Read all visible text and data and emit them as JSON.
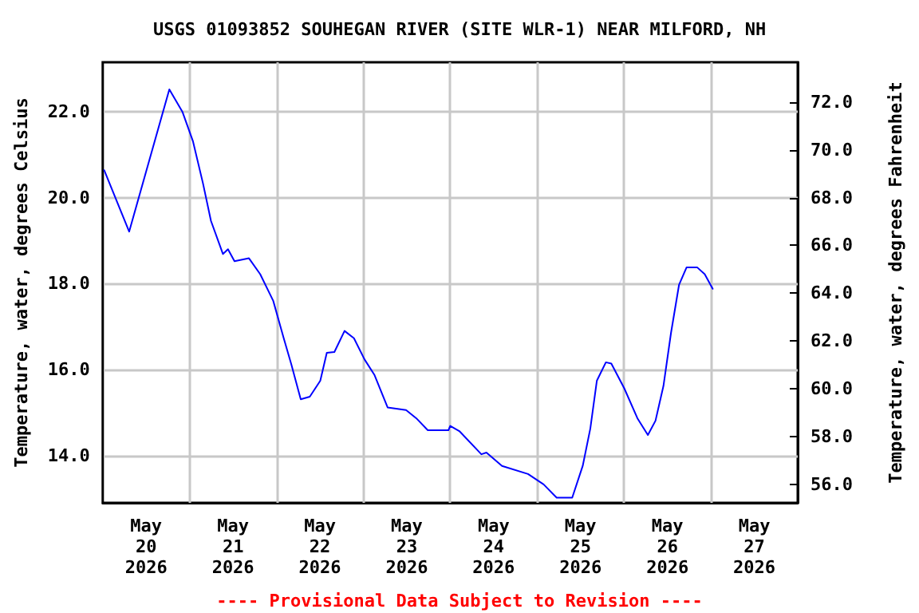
{
  "chart_data": {
    "type": "line",
    "title": "USGS 01093852 SOUHEGAN RIVER (SITE WLR-1) NEAR MILFORD, NH",
    "ylabel": "Temperature, water, degrees Celsius",
    "y2label": "Temperature, water, degrees Fahrenheit",
    "annotations": [
      "---- Provisional Data Subject to Revision ----"
    ],
    "x": [
      "2026-05-20T00:24",
      "2026-05-20T07:18",
      "2026-05-20T18:24",
      "2026-05-20T22:00",
      "2026-05-21T00:54",
      "2026-05-21T03:42",
      "2026-05-21T05:54",
      "2026-05-21T09:12",
      "2026-05-21T10:36",
      "2026-05-21T12:24",
      "2026-05-21T16:24",
      "2026-05-21T19:30",
      "2026-05-21T23:06",
      "2026-05-22T02:00",
      "2026-05-22T04:06",
      "2026-05-22T06:42",
      "2026-05-22T09:12",
      "2026-05-22T12:06",
      "2026-05-22T13:54",
      "2026-05-22T16:00",
      "2026-05-22T18:48",
      "2026-05-22T21:24",
      "2026-05-23T00:18",
      "2026-05-23T03:06",
      "2026-05-23T06:42",
      "2026-05-23T11:48",
      "2026-05-23T14:36",
      "2026-05-23T17:48",
      "2026-05-23T23:30",
      "2026-05-24T00:00",
      "2026-05-24T02:30",
      "2026-05-24T08:36",
      "2026-05-24T10:00",
      "2026-05-24T14:18",
      "2026-05-24T21:30",
      "2026-05-25T01:48",
      "2026-05-25T05:24",
      "2026-05-25T09:42",
      "2026-05-25T12:36",
      "2026-05-25T14:42",
      "2026-05-25T16:30",
      "2026-05-25T19:00",
      "2026-05-25T20:30",
      "2026-05-26T00:06",
      "2026-05-26T03:42",
      "2026-05-26T06:36",
      "2026-05-26T08:42",
      "2026-05-26T10:54",
      "2026-05-26T13:00",
      "2026-05-26T15:12",
      "2026-05-26T17:18",
      "2026-05-26T20:12",
      "2026-05-26T22:18",
      "2026-05-27T00:30"
    ],
    "series": [
      {
        "color": "#0000ff",
        "values": [
          20.64,
          19.21,
          22.52,
          22.0,
          21.32,
          20.33,
          19.46,
          18.69,
          18.8,
          18.52,
          18.59,
          18.22,
          17.6,
          16.73,
          16.12,
          15.31,
          15.37,
          15.74,
          16.39,
          16.41,
          16.9,
          16.73,
          16.24,
          15.87,
          15.12,
          15.06,
          14.87,
          14.59,
          14.59,
          14.69,
          14.57,
          14.03,
          14.07,
          13.76,
          13.57,
          13.33,
          13.02,
          13.02,
          13.76,
          14.63,
          15.74,
          16.17,
          16.14,
          15.56,
          14.87,
          14.48,
          14.81,
          15.62,
          16.86,
          17.97,
          18.38,
          18.38,
          18.22,
          17.88
        ]
      }
    ],
    "xlim": [
      "2026-05-20",
      "2026-05-28"
    ],
    "xticks": [
      {
        "value": "2026-05-20T12:00",
        "label": "May\n20\n2026"
      },
      {
        "value": "2026-05-21T12:00",
        "label": "May\n21\n2026"
      },
      {
        "value": "2026-05-22T12:00",
        "label": "May\n22\n2026"
      },
      {
        "value": "2026-05-23T12:00",
        "label": "May\n23\n2026"
      },
      {
        "value": "2026-05-24T12:00",
        "label": "May\n24\n2026"
      },
      {
        "value": "2026-05-25T12:00",
        "label": "May\n25\n2026"
      },
      {
        "value": "2026-05-26T12:00",
        "label": "May\n26\n2026"
      },
      {
        "value": "2026-05-27T12:00",
        "label": "May\n27\n2026"
      },
      {
        "value": "2026-05-21",
        "label": null
      },
      {
        "value": "2026-05-22",
        "label": null
      },
      {
        "value": "2026-05-23",
        "label": null
      },
      {
        "value": "2026-05-24",
        "label": null
      },
      {
        "value": "2026-05-25",
        "label": null
      },
      {
        "value": "2026-05-26",
        "label": null
      },
      {
        "value": "2026-05-27",
        "label": null
      }
    ],
    "ylim": [
      12.9,
      23.15
    ],
    "yticks": [
      {
        "value": 14,
        "label": "14.0"
      },
      {
        "value": 16,
        "label": "16.0"
      },
      {
        "value": 18,
        "label": "18.0"
      },
      {
        "value": 20,
        "label": "20.0"
      },
      {
        "value": 22,
        "label": "22.0"
      }
    ],
    "y2lim": [
      55.22,
      73.67
    ],
    "y2ticks": [
      {
        "value": 56,
        "label": "56.0"
      },
      {
        "value": 58,
        "label": "58.0"
      },
      {
        "value": 60,
        "label": "60.0"
      },
      {
        "value": 62,
        "label": "62.0"
      },
      {
        "value": 64,
        "label": "64.0"
      },
      {
        "value": 66,
        "label": "66.0"
      },
      {
        "value": 68,
        "label": "68.0"
      },
      {
        "value": 70,
        "label": "70.0"
      },
      {
        "value": 72,
        "label": "72.0"
      }
    ],
    "grid": true,
    "marker": "none",
    "line_style": "solid"
  }
}
